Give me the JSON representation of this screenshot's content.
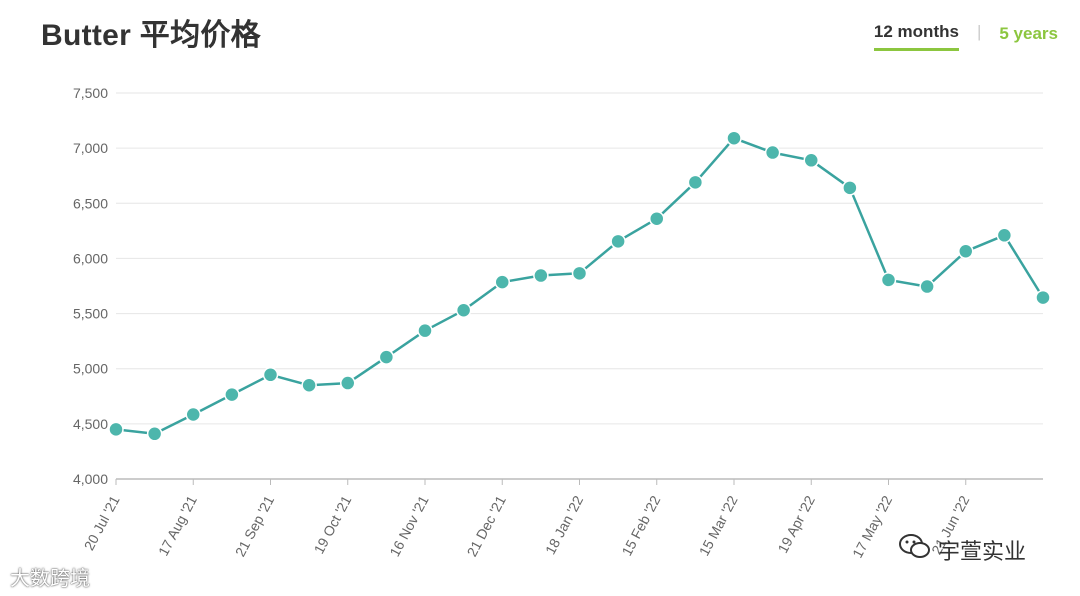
{
  "title": "Butter 平均价格",
  "tabs": [
    {
      "label": "12 months",
      "active": true
    },
    {
      "label": "5 years",
      "active": false
    }
  ],
  "tab_separator": "|",
  "watermarks": {
    "left": "大数跨境",
    "right": "宇萱实业"
  },
  "colors": {
    "line": "#3aa39f",
    "marker": "#4db6ac",
    "accent": "#8cc63f",
    "grid": "#e6e6e6",
    "axis_text": "#666666"
  },
  "chart_data": {
    "type": "line",
    "title": "Butter 平均价格",
    "xlabel": "",
    "ylabel": "",
    "ylim": [
      4000,
      7500
    ],
    "yticks": [
      4000,
      4500,
      5000,
      5500,
      6000,
      6500,
      7000,
      7500
    ],
    "ytick_labels": [
      "4,000",
      "4,500",
      "5,000",
      "5,500",
      "6,000",
      "6,500",
      "7,000",
      "7,500"
    ],
    "xtick_labels": [
      "20 Jul '21",
      "17 Aug '21",
      "21 Sep '21",
      "19 Oct '21",
      "16 Nov '21",
      "21 Dec '21",
      "18 Jan '22",
      "15 Feb '22",
      "15 Mar '22",
      "19 Apr '22",
      "17 May '22",
      "21 Jun '22"
    ],
    "grid": true,
    "series": [
      {
        "values": [
          4450,
          4410,
          4585,
          4765,
          4945,
          4850,
          4870,
          5105,
          5345,
          5530,
          5785,
          5845,
          5865,
          6155,
          6360,
          6690,
          7090,
          6960,
          6890,
          6640,
          5805,
          5745,
          6065,
          6210,
          5645
        ]
      }
    ]
  }
}
